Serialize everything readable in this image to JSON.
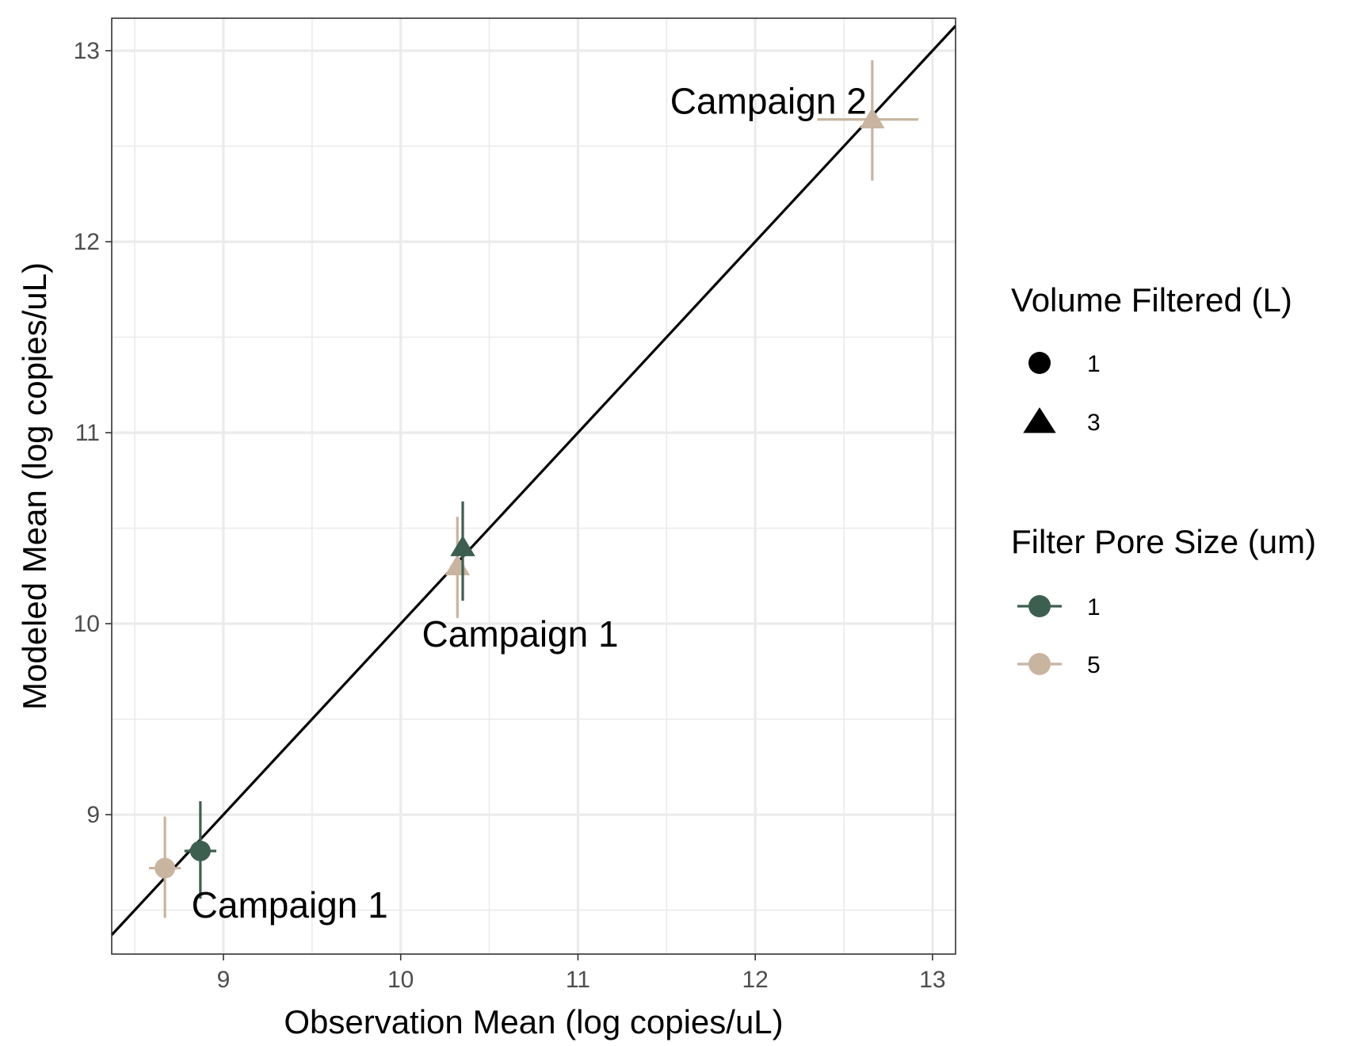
{
  "chart_data": {
    "type": "scatter",
    "xlabel": "Observation Mean (log copies/uL)",
    "ylabel": "Modeled Mean (log copies/uL)",
    "xlim": [
      8.37,
      13.13
    ],
    "ylim": [
      8.27,
      13.17
    ],
    "x_ticks": [
      9,
      10,
      11,
      12,
      13
    ],
    "y_ticks": [
      9,
      10,
      11,
      12,
      13
    ],
    "grid": true,
    "reference_line": {
      "type": "identity",
      "slope": 1,
      "intercept": 0,
      "color": "#000000"
    },
    "points": [
      {
        "x": 8.67,
        "y": 8.72,
        "x_err": [
          8.58,
          8.76
        ],
        "y_err": [
          8.46,
          8.99
        ],
        "volume_filtered": "1",
        "pore_size": "5"
      },
      {
        "x": 8.87,
        "y": 8.81,
        "x_err": [
          8.78,
          8.96
        ],
        "y_err": [
          8.56,
          9.07
        ],
        "volume_filtered": "1",
        "pore_size": "1"
      },
      {
        "x": 10.32,
        "y": 10.3,
        "x_err": [
          10.28,
          10.36
        ],
        "y_err": [
          10.03,
          10.56
        ],
        "volume_filtered": "3",
        "pore_size": "5"
      },
      {
        "x": 10.35,
        "y": 10.4,
        "x_err": [
          10.32,
          10.38
        ],
        "y_err": [
          10.12,
          10.64
        ],
        "volume_filtered": "3",
        "pore_size": "1"
      },
      {
        "x": 12.66,
        "y": 12.64,
        "x_err": [
          12.35,
          12.92
        ],
        "y_err": [
          12.32,
          12.95
        ],
        "volume_filtered": "3",
        "pore_size": "5"
      }
    ],
    "annotations": [
      {
        "text": "Campaign 1",
        "x": 8.82,
        "y": 8.46
      },
      {
        "text": "Campaign 1",
        "x": 10.12,
        "y": 9.88
      },
      {
        "text": "Campaign 2",
        "x": 11.52,
        "y": 12.67
      }
    ],
    "legends": [
      {
        "title": "Volume Filtered (L)",
        "items": [
          {
            "label": "1",
            "shape": "circle"
          },
          {
            "label": "3",
            "shape": "triangle"
          }
        ]
      },
      {
        "title": "Filter Pore Size (um)",
        "items": [
          {
            "label": "1",
            "color": "#3d5f4f"
          },
          {
            "label": "5",
            "color": "#c8b49f"
          }
        ]
      }
    ],
    "legend_position": "right",
    "colors": {
      "pore_1": "#3d5f4f",
      "pore_5": "#c8b49f",
      "line": "#000000",
      "grid": "#ebebeb",
      "border": "#333333"
    }
  }
}
